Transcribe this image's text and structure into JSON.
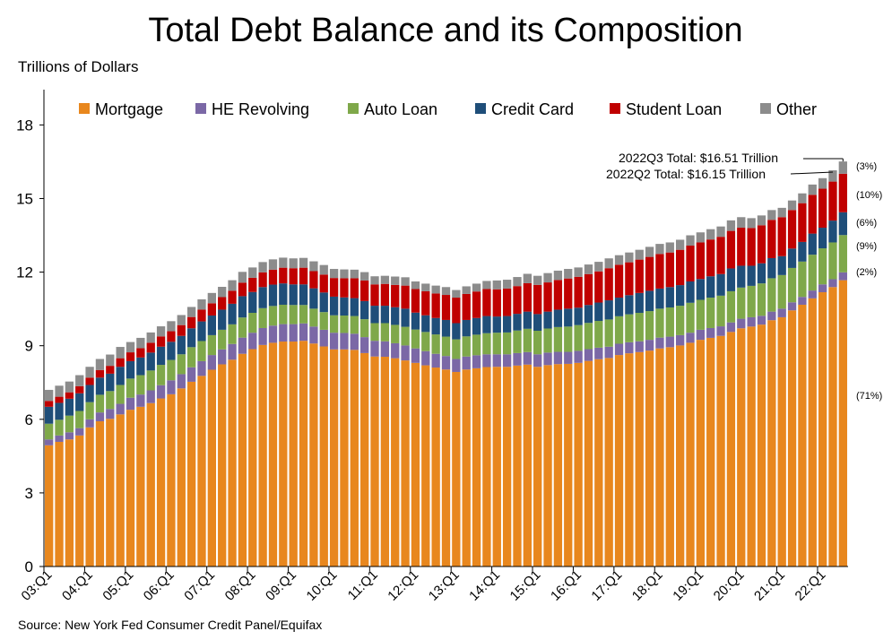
{
  "title": "Total Debt Balance and its Composition",
  "ylabel": "Trillions of Dollars",
  "source": "Source: New York Fed Consumer Credit Panel/Equifax",
  "legend": [
    {
      "name": "Mortgage",
      "color": "#E8871E"
    },
    {
      "name": "HE Revolving",
      "color": "#7B68A6"
    },
    {
      "name": "Auto Loan",
      "color": "#7FA84A"
    },
    {
      "name": "Credit Card",
      "color": "#1F4E79"
    },
    {
      "name": "Student Loan",
      "color": "#C00000"
    },
    {
      "name": "Other",
      "color": "#8C8C8C"
    }
  ],
  "annotations": {
    "q3_total": "2022Q3 Total: $16.51 Trillion",
    "q2_total": "2022Q2 Total: $16.15 Trillion"
  },
  "share_labels": [
    "(3%)",
    "(10%)",
    "(6%)",
    "(9%)",
    "(2%)",
    "(71%)"
  ],
  "chart_data": {
    "type": "bar",
    "stacked": true,
    "title": "Total Debt Balance and its Composition",
    "ylabel": "Trillions of Dollars",
    "ylim": [
      0,
      19
    ],
    "yticks": [
      0,
      3,
      6,
      9,
      12,
      15,
      18
    ],
    "grid": false,
    "legend_position": "top",
    "x_tick_labels": [
      "03:Q1",
      "04:Q1",
      "05:Q1",
      "06:Q1",
      "07:Q1",
      "08:Q1",
      "09:Q1",
      "10:Q1",
      "11:Q1",
      "12:Q1",
      "13:Q1",
      "14:Q1",
      "15:Q1",
      "16:Q1",
      "17:Q1",
      "18:Q1",
      "19:Q1",
      "20:Q1",
      "21:Q1",
      "22:Q1"
    ],
    "categories": [
      "2003Q1",
      "2003Q2",
      "2003Q3",
      "2003Q4",
      "2004Q1",
      "2004Q2",
      "2004Q3",
      "2004Q4",
      "2005Q1",
      "2005Q2",
      "2005Q3",
      "2005Q4",
      "2006Q1",
      "2006Q2",
      "2006Q3",
      "2006Q4",
      "2007Q1",
      "2007Q2",
      "2007Q3",
      "2007Q4",
      "2008Q1",
      "2008Q2",
      "2008Q3",
      "2008Q4",
      "2009Q1",
      "2009Q2",
      "2009Q3",
      "2009Q4",
      "2010Q1",
      "2010Q2",
      "2010Q3",
      "2010Q4",
      "2011Q1",
      "2011Q2",
      "2011Q3",
      "2011Q4",
      "2012Q1",
      "2012Q2",
      "2012Q3",
      "2012Q4",
      "2013Q1",
      "2013Q2",
      "2013Q3",
      "2013Q4",
      "2014Q1",
      "2014Q2",
      "2014Q3",
      "2014Q4",
      "2015Q1",
      "2015Q2",
      "2015Q3",
      "2015Q4",
      "2016Q1",
      "2016Q2",
      "2016Q3",
      "2016Q4",
      "2017Q1",
      "2017Q2",
      "2017Q3",
      "2017Q4",
      "2018Q1",
      "2018Q2",
      "2018Q3",
      "2018Q4",
      "2019Q1",
      "2019Q2",
      "2019Q3",
      "2019Q4",
      "2020Q1",
      "2020Q2",
      "2020Q3",
      "2020Q4",
      "2021Q1",
      "2021Q2",
      "2021Q3",
      "2021Q4",
      "2022Q1",
      "2022Q2",
      "2022Q3"
    ],
    "series": [
      {
        "name": "Mortgage",
        "values": [
          4.94,
          5.08,
          5.18,
          5.34,
          5.67,
          5.92,
          6.02,
          6.2,
          6.39,
          6.51,
          6.66,
          6.85,
          7.02,
          7.26,
          7.53,
          7.77,
          8.02,
          8.24,
          8.43,
          8.67,
          8.86,
          9.03,
          9.12,
          9.17,
          9.17,
          9.2,
          9.09,
          8.97,
          8.85,
          8.85,
          8.83,
          8.7,
          8.56,
          8.55,
          8.49,
          8.4,
          8.3,
          8.2,
          8.11,
          8.03,
          7.93,
          8.03,
          8.08,
          8.13,
          8.14,
          8.14,
          8.19,
          8.23,
          8.14,
          8.21,
          8.25,
          8.26,
          8.3,
          8.38,
          8.45,
          8.5,
          8.62,
          8.69,
          8.74,
          8.8,
          8.89,
          8.94,
          9.01,
          9.12,
          9.24,
          9.32,
          9.4,
          9.56,
          9.71,
          9.78,
          9.86,
          10.04,
          10.16,
          10.44,
          10.67,
          10.93,
          11.18,
          11.39,
          11.67
        ]
      },
      {
        "name": "HE Revolving",
        "values": [
          0.24,
          0.26,
          0.29,
          0.3,
          0.33,
          0.36,
          0.4,
          0.43,
          0.49,
          0.5,
          0.52,
          0.54,
          0.57,
          0.58,
          0.59,
          0.6,
          0.6,
          0.61,
          0.64,
          0.66,
          0.67,
          0.69,
          0.7,
          0.71,
          0.71,
          0.71,
          0.69,
          0.68,
          0.68,
          0.67,
          0.66,
          0.65,
          0.64,
          0.63,
          0.61,
          0.61,
          0.59,
          0.58,
          0.56,
          0.55,
          0.53,
          0.53,
          0.53,
          0.52,
          0.51,
          0.51,
          0.51,
          0.51,
          0.51,
          0.51,
          0.5,
          0.49,
          0.49,
          0.48,
          0.47,
          0.46,
          0.46,
          0.45,
          0.44,
          0.44,
          0.44,
          0.43,
          0.42,
          0.41,
          0.41,
          0.4,
          0.39,
          0.39,
          0.39,
          0.38,
          0.36,
          0.35,
          0.35,
          0.33,
          0.32,
          0.32,
          0.32,
          0.32,
          0.32
        ]
      },
      {
        "name": "Auto Loan",
        "values": [
          0.64,
          0.64,
          0.68,
          0.7,
          0.7,
          0.72,
          0.73,
          0.77,
          0.78,
          0.79,
          0.81,
          0.83,
          0.83,
          0.81,
          0.82,
          0.82,
          0.81,
          0.8,
          0.8,
          0.82,
          0.81,
          0.81,
          0.8,
          0.79,
          0.78,
          0.75,
          0.73,
          0.72,
          0.71,
          0.71,
          0.72,
          0.73,
          0.72,
          0.74,
          0.75,
          0.76,
          0.77,
          0.78,
          0.79,
          0.79,
          0.8,
          0.82,
          0.84,
          0.86,
          0.88,
          0.89,
          0.92,
          0.95,
          0.96,
          0.98,
          1.01,
          1.03,
          1.05,
          1.07,
          1.09,
          1.11,
          1.12,
          1.14,
          1.16,
          1.17,
          1.18,
          1.19,
          1.2,
          1.22,
          1.22,
          1.24,
          1.25,
          1.27,
          1.27,
          1.28,
          1.32,
          1.36,
          1.37,
          1.4,
          1.44,
          1.46,
          1.47,
          1.5,
          1.52
        ]
      },
      {
        "name": "Credit Card",
        "values": [
          0.69,
          0.69,
          0.69,
          0.72,
          0.7,
          0.7,
          0.71,
          0.74,
          0.71,
          0.72,
          0.73,
          0.74,
          0.74,
          0.75,
          0.77,
          0.8,
          0.8,
          0.82,
          0.84,
          0.87,
          0.85,
          0.86,
          0.87,
          0.87,
          0.84,
          0.84,
          0.83,
          0.8,
          0.76,
          0.74,
          0.73,
          0.74,
          0.71,
          0.71,
          0.72,
          0.74,
          0.69,
          0.68,
          0.67,
          0.68,
          0.66,
          0.67,
          0.68,
          0.7,
          0.66,
          0.67,
          0.68,
          0.7,
          0.68,
          0.69,
          0.71,
          0.73,
          0.71,
          0.73,
          0.75,
          0.78,
          0.76,
          0.78,
          0.81,
          0.83,
          0.82,
          0.83,
          0.84,
          0.87,
          0.85,
          0.87,
          0.88,
          0.93,
          0.89,
          0.82,
          0.82,
          0.82,
          0.77,
          0.79,
          0.8,
          0.86,
          0.84,
          0.89,
          0.93
        ]
      },
      {
        "name": "Student Loan",
        "values": [
          0.24,
          0.25,
          0.26,
          0.29,
          0.3,
          0.31,
          0.32,
          0.35,
          0.36,
          0.38,
          0.4,
          0.42,
          0.43,
          0.44,
          0.46,
          0.48,
          0.5,
          0.51,
          0.53,
          0.55,
          0.58,
          0.6,
          0.61,
          0.64,
          0.66,
          0.68,
          0.7,
          0.73,
          0.76,
          0.78,
          0.81,
          0.84,
          0.87,
          0.89,
          0.91,
          0.94,
          0.96,
          0.98,
          1.0,
          1.02,
          1.04,
          1.06,
          1.08,
          1.1,
          1.11,
          1.12,
          1.13,
          1.16,
          1.19,
          1.19,
          1.21,
          1.23,
          1.26,
          1.26,
          1.27,
          1.31,
          1.34,
          1.34,
          1.36,
          1.38,
          1.41,
          1.41,
          1.44,
          1.46,
          1.49,
          1.5,
          1.52,
          1.53,
          1.55,
          1.54,
          1.55,
          1.56,
          1.59,
          1.57,
          1.58,
          1.58,
          1.59,
          1.59,
          1.57
        ]
      },
      {
        "name": "Other",
        "values": [
          0.45,
          0.45,
          0.44,
          0.45,
          0.44,
          0.45,
          0.46,
          0.46,
          0.42,
          0.42,
          0.42,
          0.41,
          0.41,
          0.41,
          0.41,
          0.42,
          0.42,
          0.42,
          0.43,
          0.44,
          0.42,
          0.42,
          0.42,
          0.41,
          0.4,
          0.4,
          0.4,
          0.39,
          0.37,
          0.36,
          0.35,
          0.34,
          0.33,
          0.33,
          0.34,
          0.34,
          0.31,
          0.31,
          0.32,
          0.32,
          0.31,
          0.31,
          0.32,
          0.33,
          0.36,
          0.36,
          0.37,
          0.38,
          0.37,
          0.38,
          0.38,
          0.39,
          0.38,
          0.39,
          0.39,
          0.4,
          0.39,
          0.4,
          0.4,
          0.41,
          0.41,
          0.41,
          0.41,
          0.42,
          0.41,
          0.42,
          0.42,
          0.43,
          0.43,
          0.4,
          0.4,
          0.4,
          0.38,
          0.39,
          0.4,
          0.42,
          0.43,
          0.46,
          0.5
        ]
      }
    ]
  }
}
